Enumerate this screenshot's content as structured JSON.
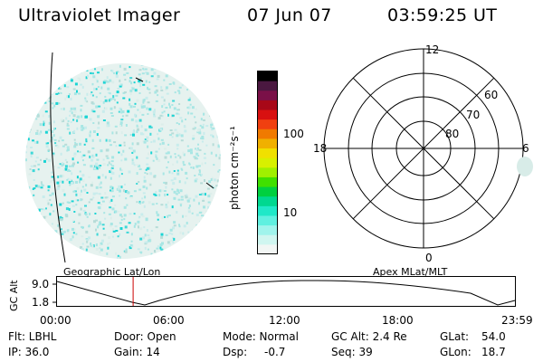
{
  "header": {
    "title": "Ultraviolet Imager",
    "date": "07 Jun 07",
    "time": "03:59:25 UT"
  },
  "colorbar": {
    "unit_label": "photon cm⁻²s⁻¹",
    "ticks": [
      "100",
      "10"
    ],
    "colors": [
      "#000000",
      "#4a1840",
      "#7a1048",
      "#a80818",
      "#d81010",
      "#f04010",
      "#f07a00",
      "#f0b000",
      "#f0e000",
      "#d8f000",
      "#a0f000",
      "#40e000",
      "#00d040",
      "#00d890",
      "#20e8c8",
      "#60f0e0",
      "#a0f4ec",
      "#d0f6f0",
      "#f2f6f4"
    ]
  },
  "left_map": {
    "label": "Geographic Lat/Lon"
  },
  "polar_plot": {
    "label": "Apex MLat/MLT",
    "mlt_labels": {
      "top": "12",
      "bottom": "0",
      "left": "18",
      "right": "6"
    },
    "lat_labels": [
      "60",
      "70",
      "80"
    ]
  },
  "altitude_plot": {
    "ylabel": "GC Alt",
    "yticks": [
      "9.0",
      "1.8"
    ],
    "xticks": [
      "00:00",
      "06:00",
      "12:00",
      "18:00",
      "23:59"
    ],
    "current_time_hours": 3.99
  },
  "info": {
    "filter": "Flt: LBHL",
    "ip": "IP: 36.0",
    "door": "Door: Open",
    "gain": "Gain: 14",
    "mode": "Mode: Normal",
    "dsp": "Dsp:",
    "dsp_value": "-0.7",
    "gc_alt": "GC Alt: 2.4 Re",
    "seq": "Seq: 39",
    "glat": "GLat:",
    "glat_value": "54.0",
    "glon": "GLon:",
    "glon_value": "18.7"
  }
}
